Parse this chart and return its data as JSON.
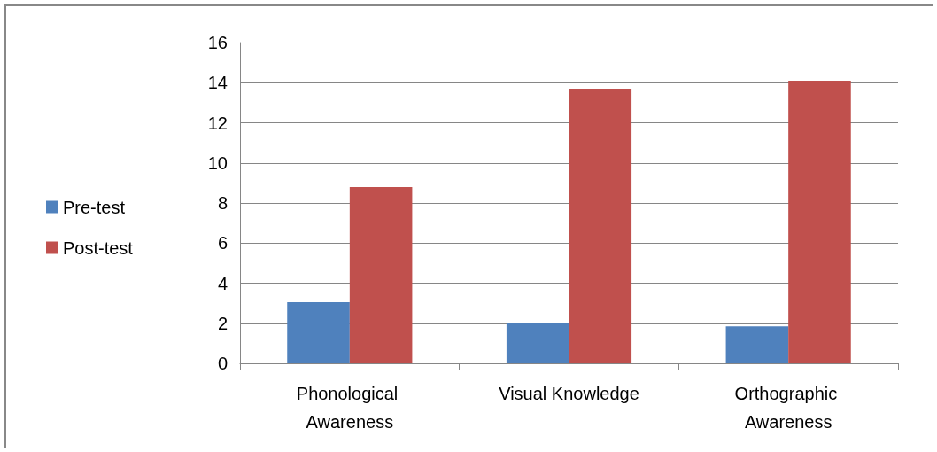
{
  "chart_data": {
    "type": "bar",
    "categories": [
      "Phonological Awareness",
      "Visual Knowledge",
      "Orthographic Awareness"
    ],
    "series": [
      {
        "name": "Pre-test",
        "color": "#4f81bd",
        "values": [
          3.05,
          2.0,
          1.85
        ]
      },
      {
        "name": "Post-test",
        "color": "#c0504d",
        "values": [
          8.8,
          13.7,
          14.1
        ]
      }
    ],
    "ylim": [
      0,
      16
    ],
    "yticks": [
      0,
      2,
      4,
      6,
      8,
      10,
      12,
      14,
      16
    ],
    "grid": "y",
    "legend": "left"
  }
}
